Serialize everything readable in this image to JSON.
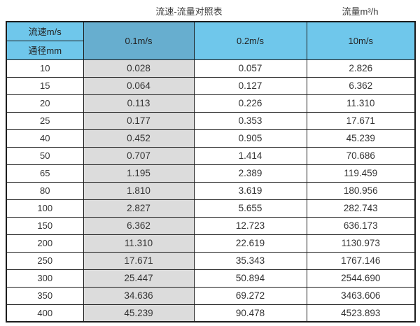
{
  "page": {
    "title": "流速-流量对照表",
    "unit_label": "流量m³/h"
  },
  "table": {
    "header": {
      "corner_top": "流速m/s",
      "corner_bottom": "通径mm",
      "col_v1": "0.1m/s",
      "col_v2": "0.2m/s",
      "col_v3": "10m/s"
    },
    "rows": [
      {
        "cells": [
          "10",
          "0.028",
          "0.057",
          "2.826"
        ]
      },
      {
        "cells": [
          "15",
          "0.064",
          "0.127",
          "6.362"
        ]
      },
      {
        "cells": [
          "20",
          "0.113",
          "0.226",
          "11.310"
        ]
      },
      {
        "cells": [
          "25",
          "0.177",
          "0.353",
          "17.671"
        ]
      },
      {
        "cells": [
          "40",
          "0.452",
          "0.905",
          "45.239"
        ]
      },
      {
        "cells": [
          "50",
          "0.707",
          "1.414",
          "70.686"
        ]
      },
      {
        "cells": [
          "65",
          "1.195",
          "2.389",
          "119.459"
        ]
      },
      {
        "cells": [
          "80",
          "1.810",
          "3.619",
          "180.956"
        ]
      },
      {
        "cells": [
          "100",
          "2.827",
          "5.655",
          "282.743"
        ]
      },
      {
        "cells": [
          "150",
          "6.362",
          "12.723",
          "636.173"
        ]
      },
      {
        "cells": [
          "200",
          "11.310",
          "22.619",
          "1130.973"
        ]
      },
      {
        "cells": [
          "250",
          "17.671",
          "35.343",
          "1767.146"
        ]
      },
      {
        "cells": [
          "300",
          "25.447",
          "50.894",
          "2544.690"
        ]
      },
      {
        "cells": [
          "350",
          "34.636",
          "69.272",
          "3463.606"
        ]
      },
      {
        "cells": [
          "400",
          "45.239",
          "90.478",
          "4523.893"
        ]
      }
    ]
  },
  "colors": {
    "header_blue": "#6FC7EB",
    "header_dark_blue": "#67AECF",
    "gray_column": "#DCDCDC",
    "border_color": "#1C1C1C"
  },
  "chart_data": {
    "type": "table",
    "title": "流速-流量对照表",
    "value_unit": "流量m³/h",
    "row_axis_label": "通径mm",
    "col_axis_label": "流速m/s",
    "categories": [
      10,
      15,
      20,
      25,
      40,
      50,
      65,
      80,
      100,
      150,
      200,
      250,
      300,
      350,
      400
    ],
    "series": [
      {
        "name": "0.1m/s",
        "values": [
          0.028,
          0.064,
          0.113,
          0.177,
          0.452,
          0.707,
          1.195,
          1.81,
          2.827,
          6.362,
          11.31,
          17.671,
          25.447,
          34.636,
          45.239
        ]
      },
      {
        "name": "0.2m/s",
        "values": [
          0.057,
          0.127,
          0.226,
          0.353,
          0.905,
          1.414,
          2.389,
          3.619,
          5.655,
          12.723,
          22.619,
          35.343,
          50.894,
          69.272,
          90.478
        ]
      },
      {
        "name": "10m/s",
        "values": [
          2.826,
          6.362,
          11.31,
          17.671,
          45.239,
          70.686,
          119.459,
          180.956,
          282.743,
          636.173,
          1130.973,
          1767.146,
          2544.69,
          3463.606,
          4523.893
        ]
      }
    ]
  }
}
